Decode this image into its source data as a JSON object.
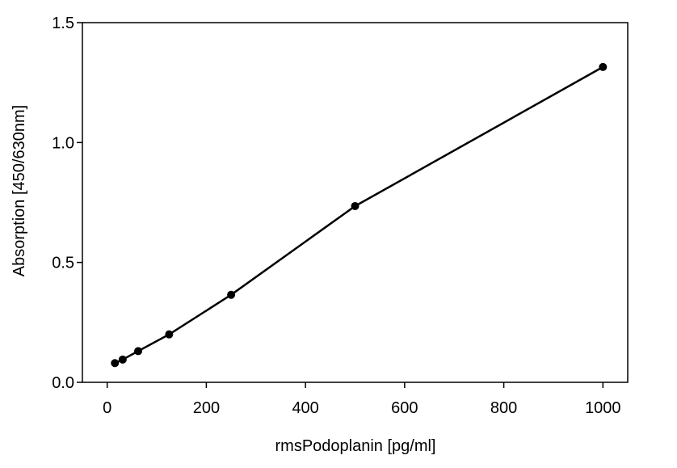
{
  "chart_data": {
    "type": "line",
    "title": "",
    "xlabel": "rmsPodoplanin [pg/ml]",
    "ylabel": "Absorption [450/630nm]",
    "xlim": [
      -50,
      1050
    ],
    "ylim": [
      0,
      1.5
    ],
    "x_ticks": [
      0,
      200,
      400,
      600,
      800,
      1000
    ],
    "x_tick_labels": [
      "0",
      "200",
      "400",
      "600",
      "800",
      "1000"
    ],
    "y_ticks": [
      0,
      0.5,
      1.0,
      1.5
    ],
    "y_tick_labels": [
      "0.0",
      "0.5",
      "1.0",
      "1.5"
    ],
    "grid": false,
    "legend": "none",
    "series": [
      {
        "x": [
          15.6,
          31.25,
          62.5,
          125,
          250,
          500,
          1000
        ],
        "y": [
          0.08,
          0.095,
          0.13,
          0.2,
          0.365,
          0.735,
          1.315
        ],
        "color": "#000000",
        "marker": "circle"
      }
    ]
  }
}
